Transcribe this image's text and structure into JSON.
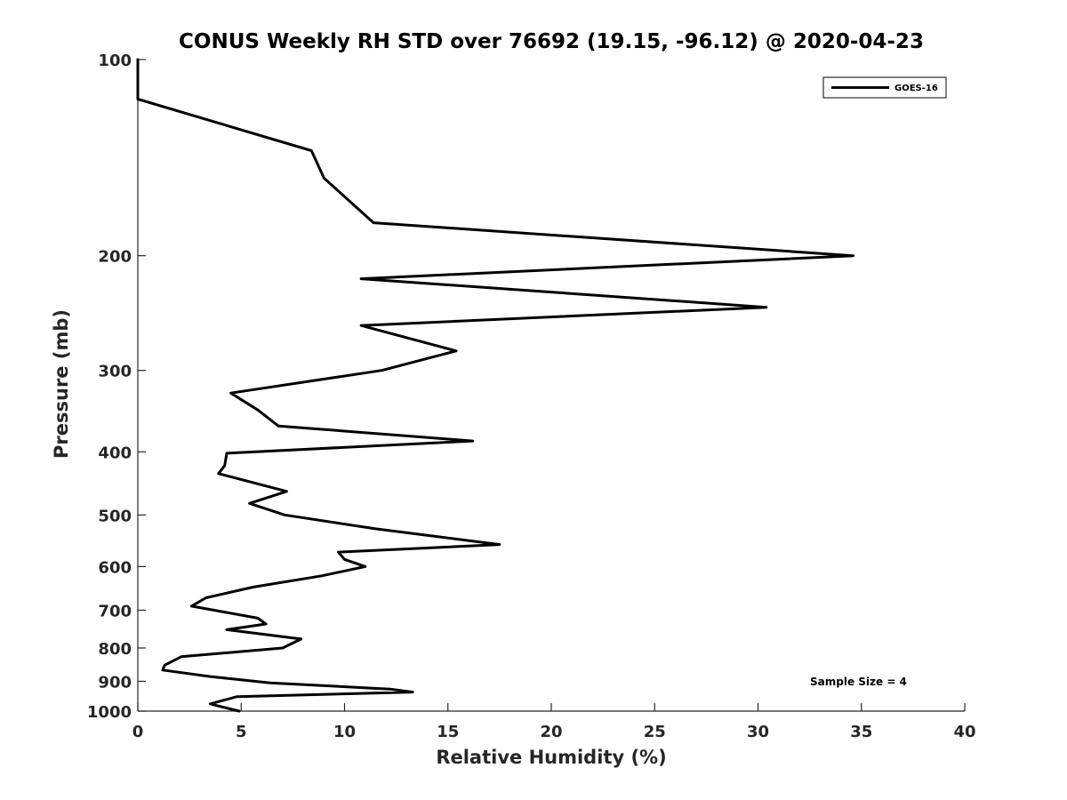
{
  "chart_data": {
    "type": "line",
    "title": "CONUS Weekly RH STD over 76692 (19.15, -96.12) @ 2020-04-23",
    "xlabel": "Relative Humidity (%)",
    "ylabel": "Pressure (mb)",
    "xlim": [
      0,
      40
    ],
    "ylim": [
      1000,
      100
    ],
    "yscale": "log",
    "grid": false,
    "legend_position": "top-right",
    "x_ticks": [
      0,
      5,
      10,
      15,
      20,
      25,
      30,
      35,
      40
    ],
    "x_tick_labels": [
      "0",
      "5",
      "10",
      "15",
      "20",
      "25",
      "30",
      "35",
      "40"
    ],
    "y_ticks": [
      100,
      200,
      300,
      400,
      500,
      600,
      700,
      800,
      900,
      1000
    ],
    "y_tick_labels": [
      "100",
      "200",
      "300",
      "400",
      "500",
      "600",
      "700",
      "800",
      "900",
      "1000"
    ],
    "series": [
      {
        "name": "GOES-16",
        "color": "#000000",
        "x": [
          0,
          0,
          8.4,
          9.0,
          11.4,
          34.6,
          10.8,
          30.4,
          10.8,
          15.4,
          11.8,
          4.5,
          5.8,
          6.8,
          16.2,
          4.3,
          4.2,
          3.9,
          7.2,
          5.4,
          7.1,
          11.5,
          17.5,
          9.7,
          10.0,
          11.0,
          8.9,
          5.6,
          3.3,
          2.6,
          5.8,
          6.2,
          4.3,
          7.9,
          7.0,
          2.1,
          1.3,
          1.2,
          3.5,
          6.4,
          12.2,
          13.3,
          4.8,
          3.5,
          4.9
        ],
        "y": [
          100,
          115,
          138,
          152,
          178,
          200,
          217,
          240,
          256,
          280,
          300,
          325,
          345,
          365,
          385,
          402,
          420,
          432,
          460,
          480,
          500,
          525,
          555,
          570,
          585,
          600,
          620,
          645,
          670,
          690,
          720,
          735,
          750,
          775,
          800,
          825,
          850,
          865,
          885,
          905,
          925,
          935,
          950,
          975,
          1000
        ]
      }
    ],
    "annotation": "Sample Size = 4"
  }
}
